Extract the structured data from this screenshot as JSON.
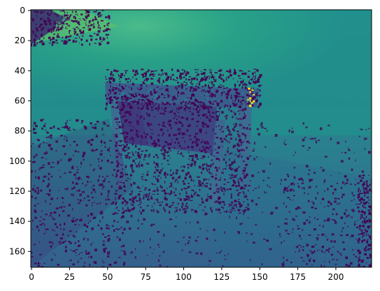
{
  "chart_data": {
    "type": "heatmap",
    "title": "",
    "xlabel": "",
    "ylabel": "",
    "xlim": [
      -0.5,
      223.5
    ],
    "ylim": [
      170.5,
      -0.5
    ],
    "x_ticks": [
      0,
      25,
      50,
      75,
      100,
      125,
      150,
      175,
      200
    ],
    "y_ticks": [
      0,
      20,
      40,
      60,
      80,
      100,
      120,
      140,
      160
    ],
    "grid": false,
    "legend": "none",
    "colormap": "viridis",
    "description_values": {
      "background_gradient": "teal to green; brighter green near top-left/center top",
      "dark_noise_regions": "purple speckled masks around floor, table top and bottom"
    }
  },
  "colors": {
    "dark": "#440154",
    "deep_blue": "#3a4b8c",
    "blue": "#355f8d",
    "teal": "#21908d",
    "green": "#35b779",
    "bright": "#fde725"
  }
}
